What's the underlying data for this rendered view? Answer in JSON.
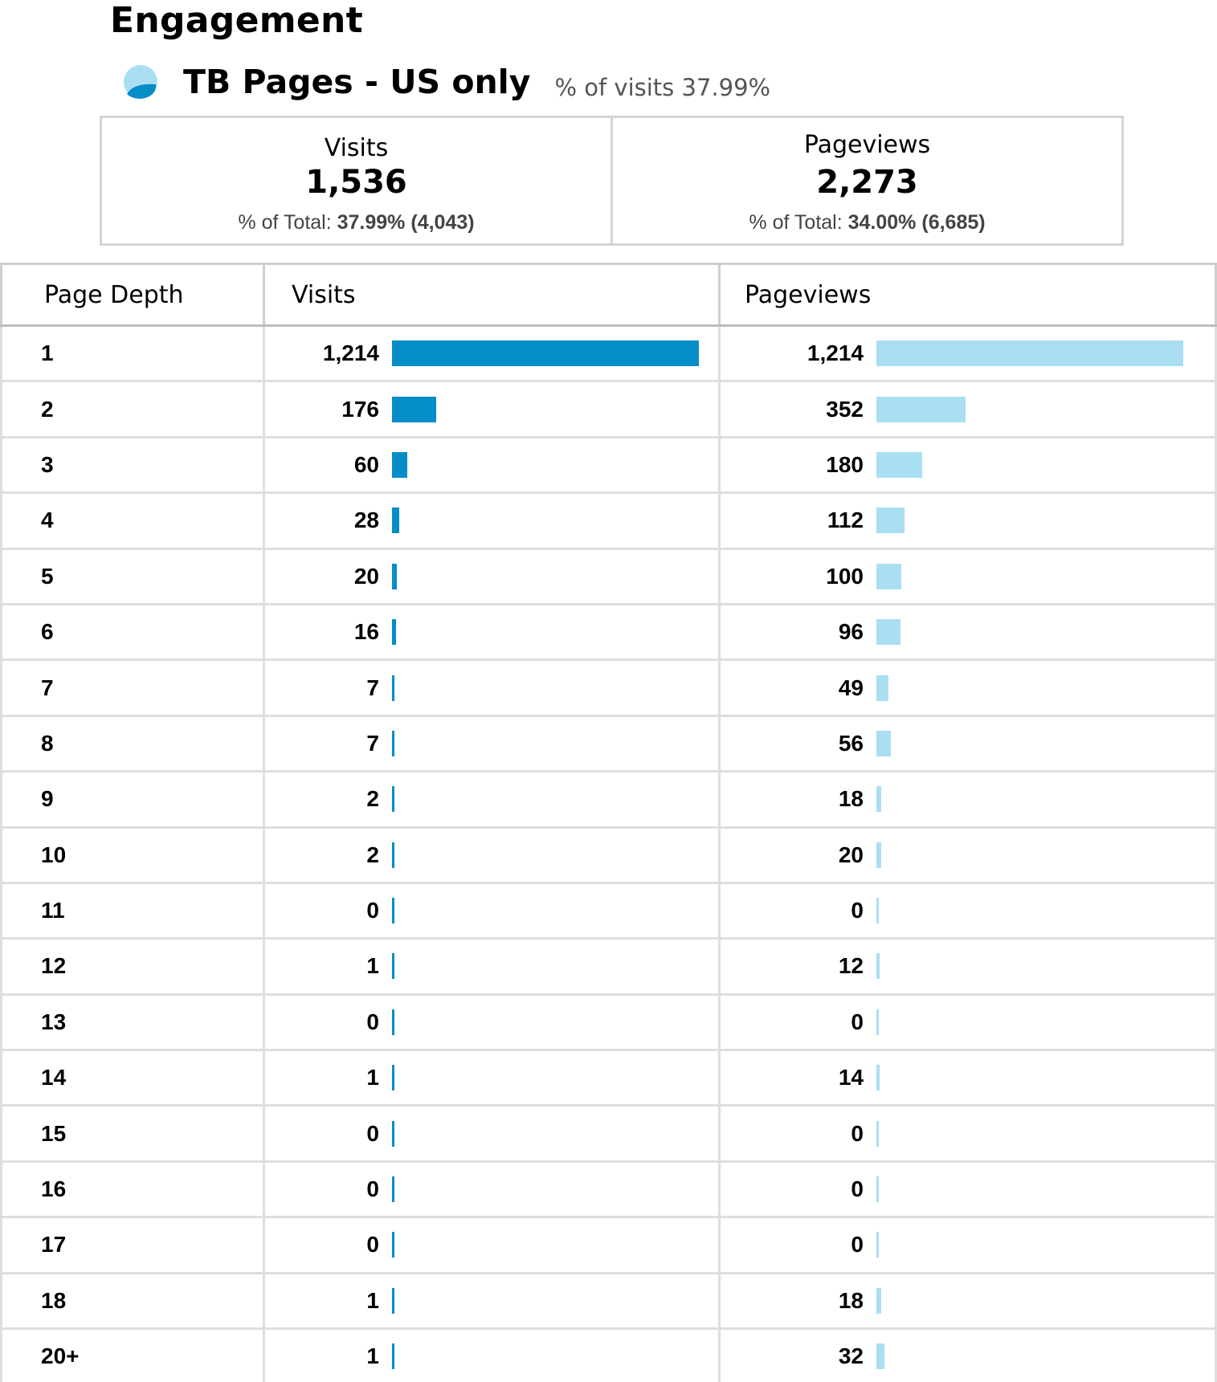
{
  "header": {
    "title": "Engagement",
    "segment_name": "TB Pages - US only",
    "segment_share": "% of visits 37.99%"
  },
  "summary": {
    "visits": {
      "label": "Visits",
      "value": "1,536",
      "total_prefix": "% of Total:",
      "total_pct": "37.99%",
      "total_abs": "(4,043)"
    },
    "pageviews": {
      "label": "Pageviews",
      "value": "2,273",
      "total_prefix": "% of Total:",
      "total_pct": "34.00%",
      "total_abs": "(6,685)"
    }
  },
  "table": {
    "columns": [
      "Page Depth",
      "Visits",
      "Pageviews"
    ],
    "rows": [
      {
        "depth": "1",
        "visits": "1,214",
        "pageviews": "1,214"
      },
      {
        "depth": "2",
        "visits": "176",
        "pageviews": "352"
      },
      {
        "depth": "3",
        "visits": "60",
        "pageviews": "180"
      },
      {
        "depth": "4",
        "visits": "28",
        "pageviews": "112"
      },
      {
        "depth": "5",
        "visits": "20",
        "pageviews": "100"
      },
      {
        "depth": "6",
        "visits": "16",
        "pageviews": "96"
      },
      {
        "depth": "7",
        "visits": "7",
        "pageviews": "49"
      },
      {
        "depth": "8",
        "visits": "7",
        "pageviews": "56"
      },
      {
        "depth": "9",
        "visits": "2",
        "pageviews": "18"
      },
      {
        "depth": "10",
        "visits": "2",
        "pageviews": "20"
      },
      {
        "depth": "11",
        "visits": "0",
        "pageviews": "0"
      },
      {
        "depth": "12",
        "visits": "1",
        "pageviews": "12"
      },
      {
        "depth": "13",
        "visits": "0",
        "pageviews": "0"
      },
      {
        "depth": "14",
        "visits": "1",
        "pageviews": "14"
      },
      {
        "depth": "15",
        "visits": "0",
        "pageviews": "0"
      },
      {
        "depth": "16",
        "visits": "0",
        "pageviews": "0"
      },
      {
        "depth": "17",
        "visits": "0",
        "pageviews": "0"
      },
      {
        "depth": "18",
        "visits": "1",
        "pageviews": "18"
      },
      {
        "depth": "20+",
        "visits": "1",
        "pageviews": "32"
      }
    ]
  },
  "colors": {
    "visits_bar": "#058dc7",
    "pageviews_bar": "#aadff3",
    "segment_icon_light": "#aadff3",
    "segment_icon_dark": "#058dc7"
  },
  "icons": {
    "segment": "pie-segment-icon"
  }
}
